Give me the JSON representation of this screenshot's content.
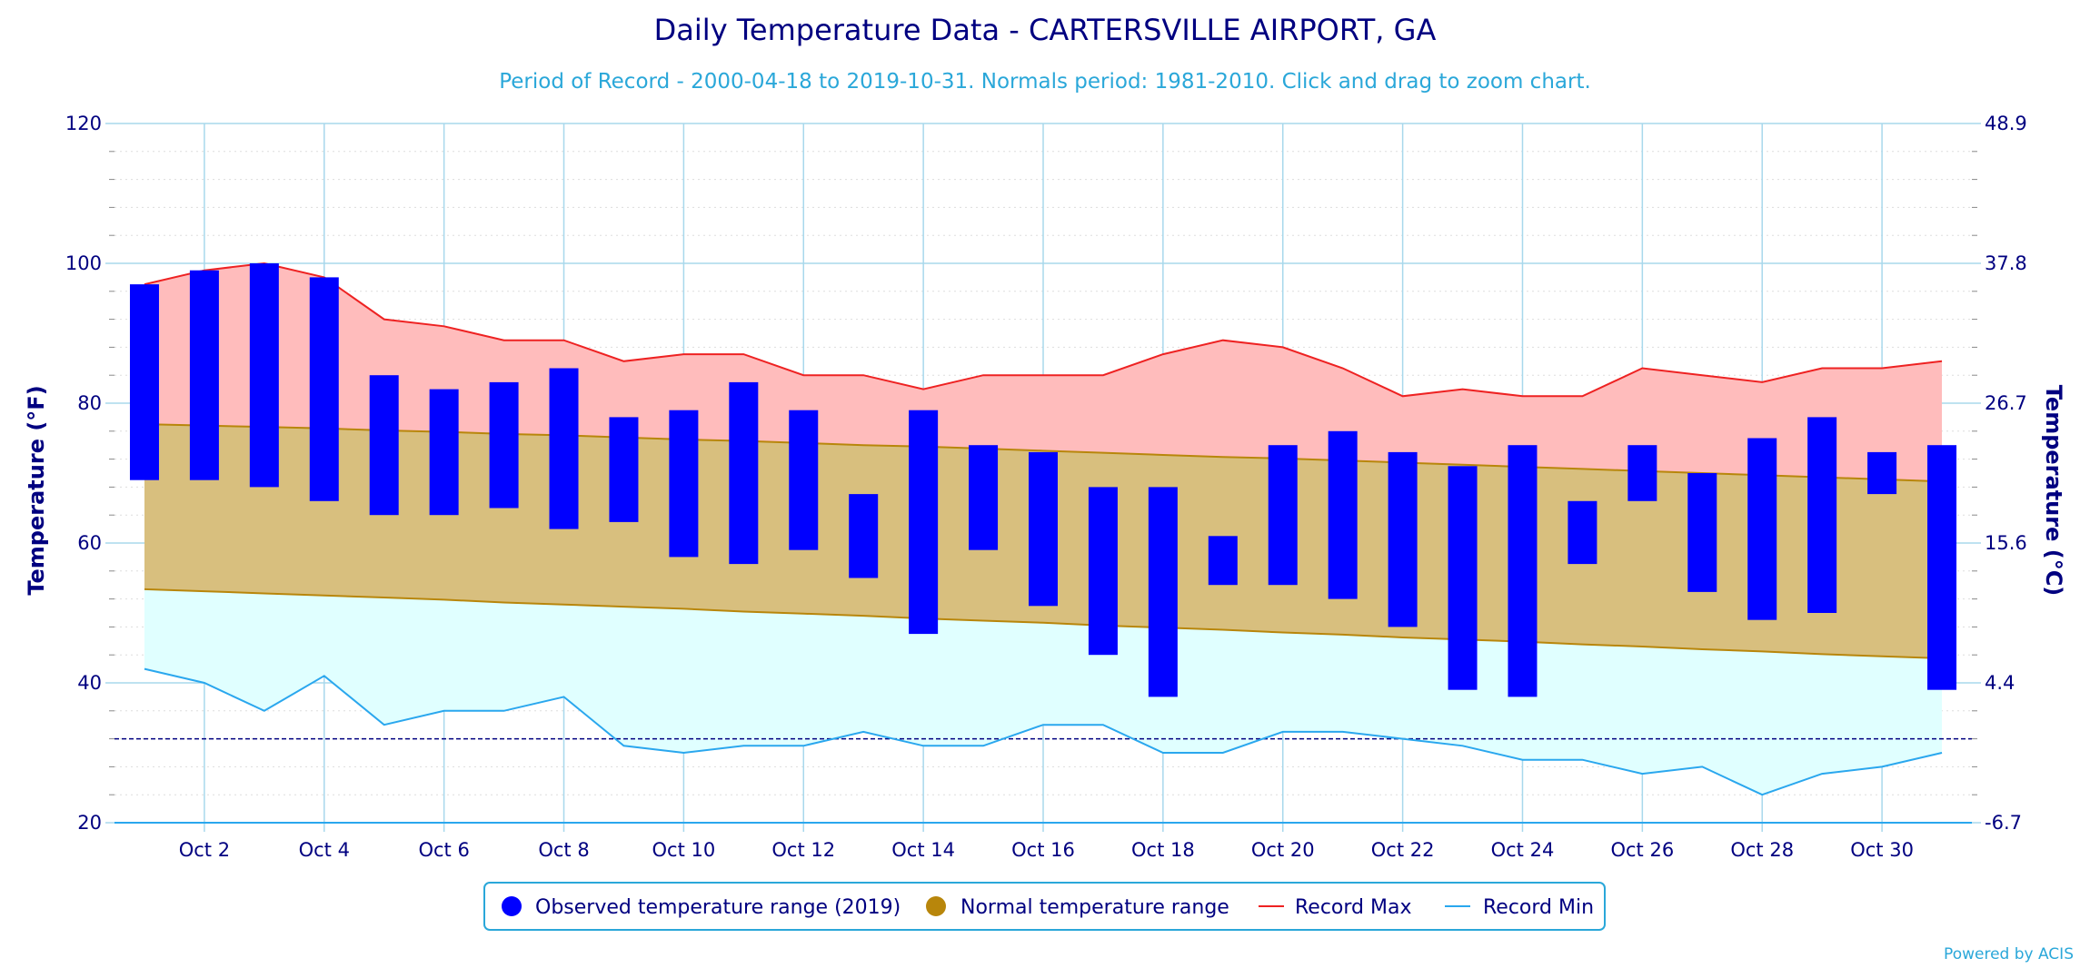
{
  "title": "Daily Temperature Data - CARTERSVILLE AIRPORT, GA",
  "subtitle": "Period of Record - 2000-04-18 to 2019-10-31. Normals period: 1981-2010. Click and drag to zoom chart.",
  "credit": "Powered by ACIS",
  "colors": {
    "observed": "#0000ff",
    "normal_fill": "#d8bf7e",
    "normal_edge": "#b8860b",
    "normal_legend": "#b8860b",
    "record_max": "#ee2222",
    "record_max_fill": "#ffbcbc",
    "record_min": "#2aa7ee",
    "record_min_fill": "#e0ffff",
    "freezing": "#000080",
    "grid": "#a8d8ec",
    "axis_text": "#000080"
  },
  "chart_data": {
    "type": "bar",
    "x": [
      1,
      2,
      3,
      4,
      5,
      6,
      7,
      8,
      9,
      10,
      11,
      12,
      13,
      14,
      15,
      16,
      17,
      18,
      19,
      20,
      21,
      22,
      23,
      24,
      25,
      26,
      27,
      28,
      29,
      30,
      31
    ],
    "xticks": [
      "Oct 2",
      "Oct 4",
      "Oct 6",
      "Oct 8",
      "Oct 10",
      "Oct 12",
      "Oct 14",
      "Oct 16",
      "Oct 18",
      "Oct 20",
      "Oct 22",
      "Oct 24",
      "Oct 26",
      "Oct 28",
      "Oct 30"
    ],
    "xtick_days": [
      2,
      4,
      6,
      8,
      10,
      12,
      14,
      16,
      18,
      20,
      22,
      24,
      26,
      28,
      30
    ],
    "ylim": [
      20,
      120
    ],
    "yticks": [
      20,
      40,
      60,
      80,
      100,
      120
    ],
    "yticks_right": [
      "-6.7",
      "4.4",
      "15.6",
      "26.7",
      "37.8",
      "48.9"
    ],
    "ylabel": "Temperature (°F)",
    "ylabel_right": "Temperature (°C)",
    "freezing_line": 32,
    "series": [
      {
        "name": "Observed temperature range (2019)",
        "type": "range-bar",
        "low": [
          69,
          69,
          68,
          66,
          64,
          64,
          65,
          62,
          63,
          58,
          57,
          59,
          55,
          47,
          59,
          51,
          44,
          38,
          54,
          54,
          52,
          48,
          39,
          38,
          57,
          66,
          53,
          49,
          50,
          67,
          39
        ],
        "high": [
          97,
          99,
          100,
          98,
          84,
          82,
          83,
          85,
          78,
          79,
          83,
          79,
          67,
          79,
          74,
          73,
          68,
          68,
          61,
          74,
          76,
          73,
          71,
          74,
          66,
          74,
          70,
          75,
          78,
          73,
          74
        ]
      },
      {
        "name": "Normal temperature range",
        "type": "range-area",
        "low": [
          53.4,
          53.1,
          52.8,
          52.5,
          52.2,
          51.9,
          51.5,
          51.2,
          50.9,
          50.6,
          50.2,
          49.9,
          49.6,
          49.2,
          48.9,
          48.6,
          48.2,
          47.9,
          47.6,
          47.2,
          46.9,
          46.5,
          46.2,
          45.9,
          45.5,
          45.2,
          44.8,
          44.5,
          44.1,
          43.8,
          43.5
        ],
        "high": [
          77.0,
          76.8,
          76.6,
          76.4,
          76.1,
          75.9,
          75.6,
          75.4,
          75.1,
          74.8,
          74.6,
          74.3,
          74.0,
          73.8,
          73.5,
          73.2,
          72.9,
          72.6,
          72.3,
          72.1,
          71.8,
          71.5,
          71.2,
          70.9,
          70.6,
          70.3,
          70.0,
          69.7,
          69.4,
          69.1,
          68.8
        ]
      },
      {
        "name": "Record Max",
        "type": "line",
        "values": [
          97,
          99,
          100,
          98,
          92,
          91,
          89,
          89,
          86,
          87,
          87,
          84,
          84,
          82,
          84,
          84,
          84,
          87,
          89,
          88,
          85,
          81,
          82,
          81,
          81,
          85,
          84,
          83,
          85,
          85,
          86
        ]
      },
      {
        "name": "Record Min",
        "type": "line",
        "values": [
          42,
          40,
          36,
          41,
          34,
          36,
          36,
          38,
          31,
          30,
          31,
          31,
          33,
          31,
          31,
          34,
          34,
          30,
          30,
          33,
          33,
          32,
          31,
          29,
          29,
          27,
          28,
          24,
          27,
          28,
          30
        ]
      }
    ],
    "legend_position": "bottom-center",
    "grid": true
  }
}
